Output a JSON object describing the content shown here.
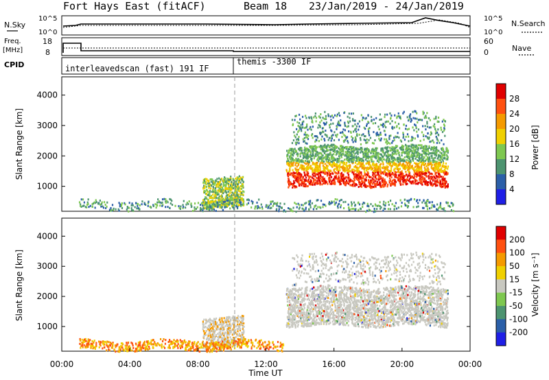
{
  "header": {
    "radar": "Fort Hays East (fitACF)",
    "beam": "Beam 18",
    "dates": "23/Jan/2019 - 24/Jan/2019"
  },
  "top_panels": {
    "nsky_label": "N.Sky",
    "nsearch_label": "N.Search",
    "noise_ticks_left": [
      "10^5",
      "10^0"
    ],
    "noise_ticks_right": [
      "10^5",
      "10^0"
    ],
    "freq_label": "Freq.",
    "freq_unit": "[MHz]",
    "freq_ticks": [
      "18",
      "8"
    ],
    "nave_label": "Nave",
    "nave_ticks": [
      "60",
      "0"
    ],
    "cpid_label": "CPID",
    "cpid_segments": [
      "interleavedscan (fast) 191 IF",
      "themis -3300 IF"
    ]
  },
  "chart_data": [
    {
      "type": "heatmap",
      "title": "",
      "ylabel": "Slant Range [km]",
      "ylim": [
        180,
        4600
      ],
      "yticks": [
        "1000",
        "2000",
        "3000",
        "4000"
      ],
      "colorbar_label": "Power [dB]",
      "colorbar_ticks": [
        "28",
        "24",
        "20",
        "16",
        "12",
        "8",
        "4"
      ],
      "colors": [
        "#1f1fe6",
        "#2b5fa8",
        "#4d9470",
        "#7ec850",
        "#f0d000",
        "#f59a00",
        "#ff5010",
        "#e00000"
      ],
      "regions": [
        {
          "time_range": [
            "13:10",
            "22:40"
          ],
          "range_km": [
            1000,
            2300
          ],
          "level": "strong"
        },
        {
          "time_range": [
            "13:30",
            "22:30"
          ],
          "range_km": [
            2400,
            3400
          ],
          "level": "weak"
        },
        {
          "time_range": [
            "08:15",
            "10:40"
          ],
          "range_km": [
            300,
            1300
          ],
          "level": "moderate"
        }
      ]
    },
    {
      "type": "heatmap",
      "title": "",
      "ylabel": "Slant Range [km]",
      "ylim": [
        180,
        4600
      ],
      "yticks": [
        "1000",
        "2000",
        "3000",
        "4000"
      ],
      "colorbar_label": "Velocity [m s⁻¹]",
      "colorbar_ticks": [
        "200",
        "100",
        "50",
        "15",
        "-15",
        "-50",
        "-100",
        "-200"
      ],
      "colors": [
        "#1f1fe6",
        "#2b5fa8",
        "#4d9470",
        "#7ec850",
        "#c8c8c0",
        "#f0d000",
        "#f59a00",
        "#ff5010",
        "#e00000"
      ],
      "regions": [
        {
          "time_range": [
            "13:10",
            "22:40"
          ],
          "range_km": [
            1000,
            2300
          ],
          "level": "low-velocity"
        },
        {
          "time_range": [
            "08:15",
            "10:40"
          ],
          "range_km": [
            300,
            1300
          ],
          "level": "low-velocity"
        }
      ]
    }
  ],
  "x_axis": {
    "ticks": [
      "00:00",
      "04:00",
      "08:00",
      "12:00",
      "16:00",
      "20:00",
      "00:00"
    ],
    "label": "Time UT"
  }
}
